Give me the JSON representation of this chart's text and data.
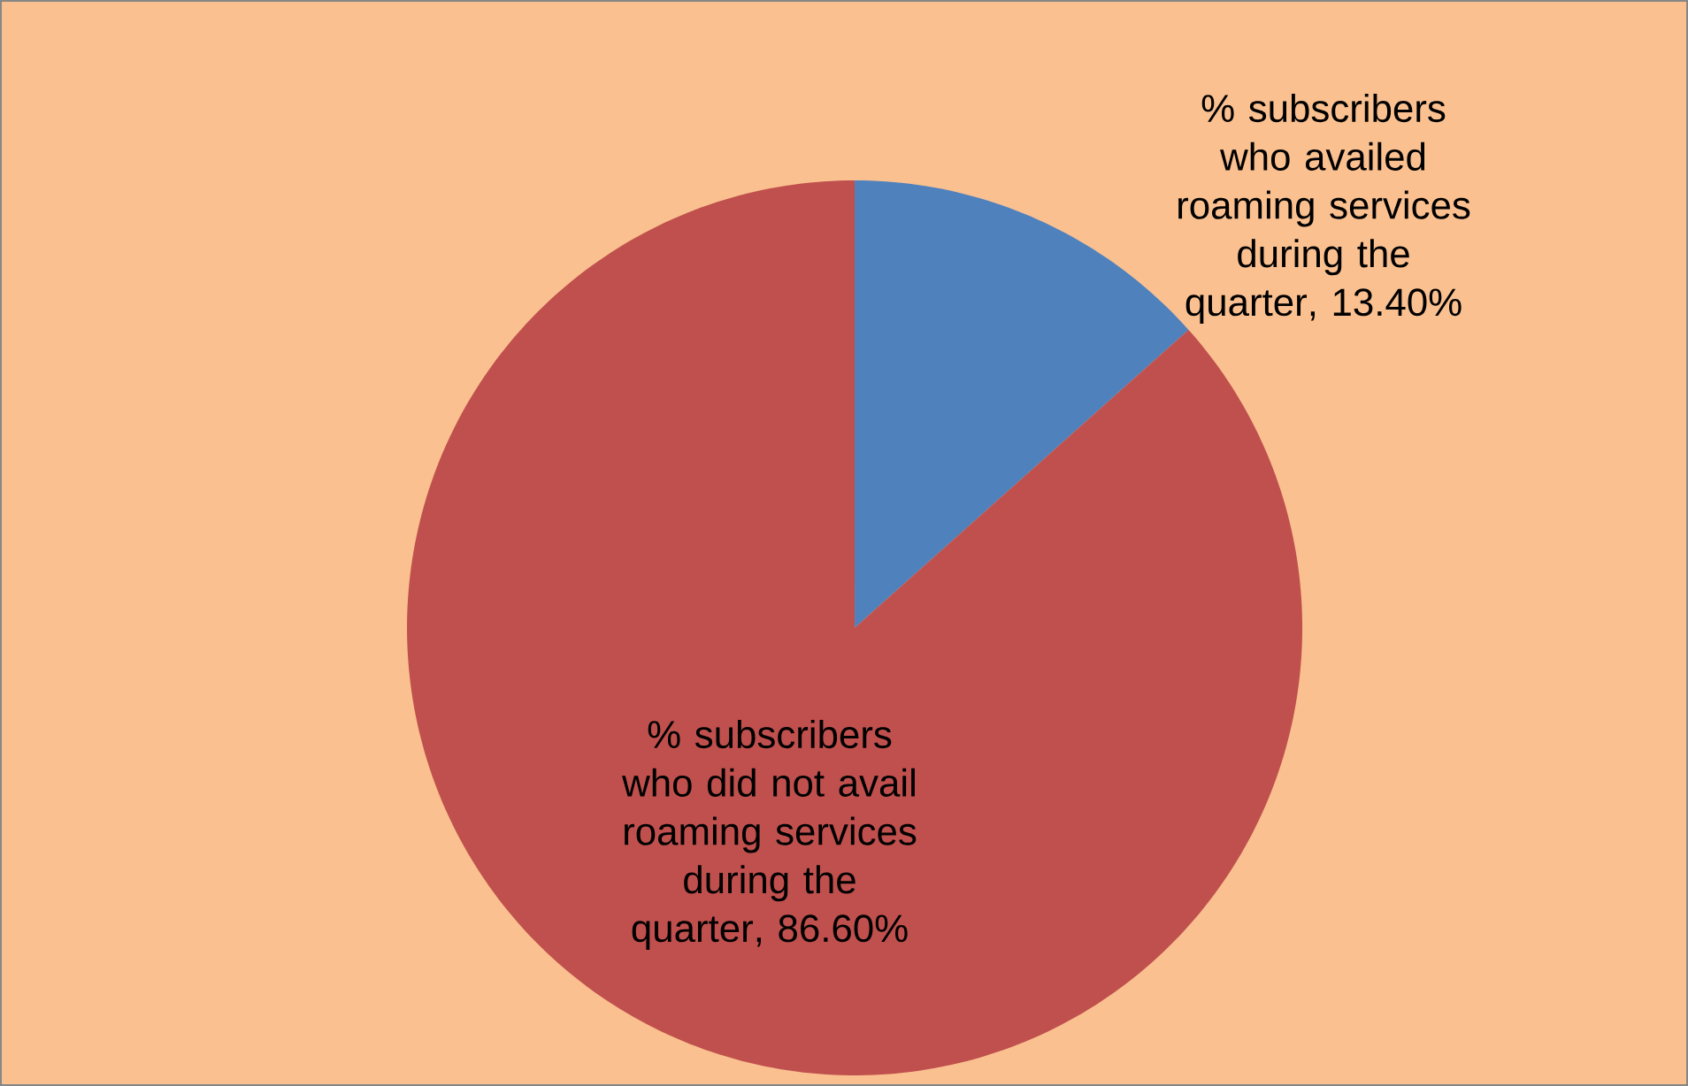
{
  "chart_data": {
    "type": "pie",
    "categories": [
      "% subscribers who availed roaming services during the quarter",
      "% subscribers who did not avail roaming services during the quarter"
    ],
    "values": [
      13.4,
      86.6
    ],
    "value_labels": [
      ", 13.40%",
      ", 86.60%"
    ],
    "colors": [
      "#4f81bd",
      "#c0504d"
    ]
  }
}
